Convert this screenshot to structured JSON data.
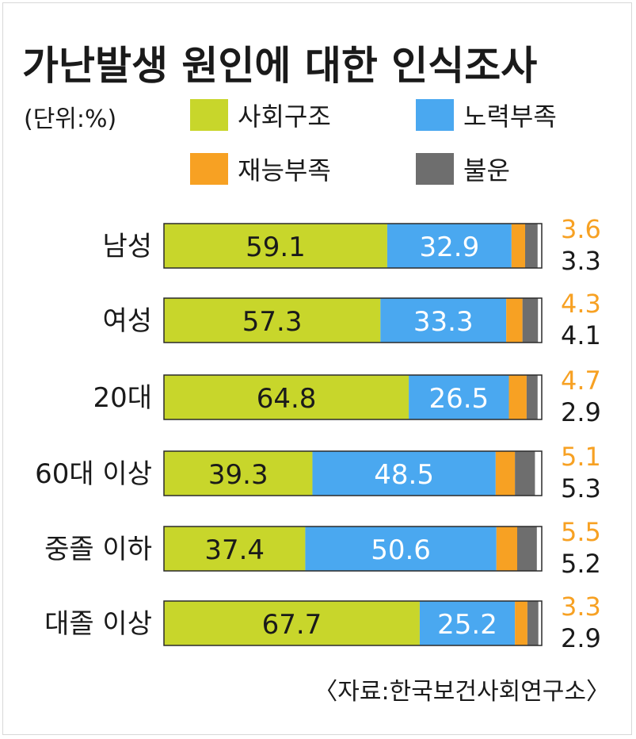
{
  "chart_data": {
    "type": "bar",
    "orientation": "horizontal",
    "stacked": true,
    "title": "가난발생 원인에 대한 인식조사",
    "unit_label": "(단위:%)",
    "source": "〈자료:한국보건사회연구소〉",
    "legend_placement": "top",
    "categories": [
      "남성",
      "여성",
      "20대",
      "60대 이상",
      "중졸 이하",
      "대졸 이상"
    ],
    "series": [
      {
        "name": "사회구조",
        "color": "#c8d62b",
        "values": [
          59.1,
          57.3,
          64.8,
          39.3,
          37.4,
          67.7
        ]
      },
      {
        "name": "노력부족",
        "color": "#4aa8f0",
        "values": [
          32.9,
          33.3,
          26.5,
          48.5,
          50.6,
          25.2
        ]
      },
      {
        "name": "재능부족",
        "color": "#f7a123",
        "values": [
          3.6,
          4.3,
          4.7,
          5.1,
          5.5,
          3.3
        ]
      },
      {
        "name": "불운",
        "color": "#6e6e6e",
        "values": [
          3.3,
          4.1,
          2.9,
          5.3,
          5.2,
          2.9
        ]
      }
    ],
    "xlim": [
      0,
      100
    ],
    "grid": false
  }
}
